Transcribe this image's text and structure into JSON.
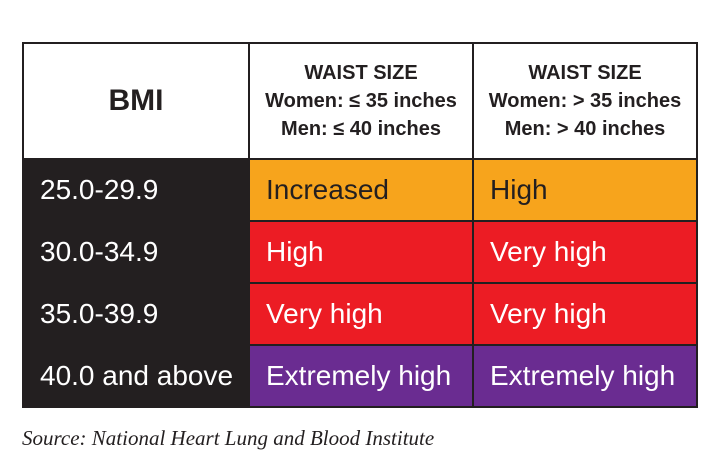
{
  "table": {
    "header": {
      "bmi": "BMI",
      "col1": [
        "WAIST SIZE",
        "Women: ≤ 35 inches",
        "Men: ≤ 40 inches"
      ],
      "col2": [
        "WAIST SIZE",
        "Women: > 35 inches",
        "Men: > 40 inches"
      ]
    },
    "rows": [
      [
        "25.0-29.9",
        "Increased",
        "High"
      ],
      [
        "30.0-34.9",
        "High",
        "Very high"
      ],
      [
        "35.0-39.9",
        "Very high",
        "Very high"
      ],
      [
        "40.0 and above",
        "Extremely high",
        "Extremely high"
      ]
    ]
  },
  "source": "Source: National Heart Lung and Blood Institute"
}
